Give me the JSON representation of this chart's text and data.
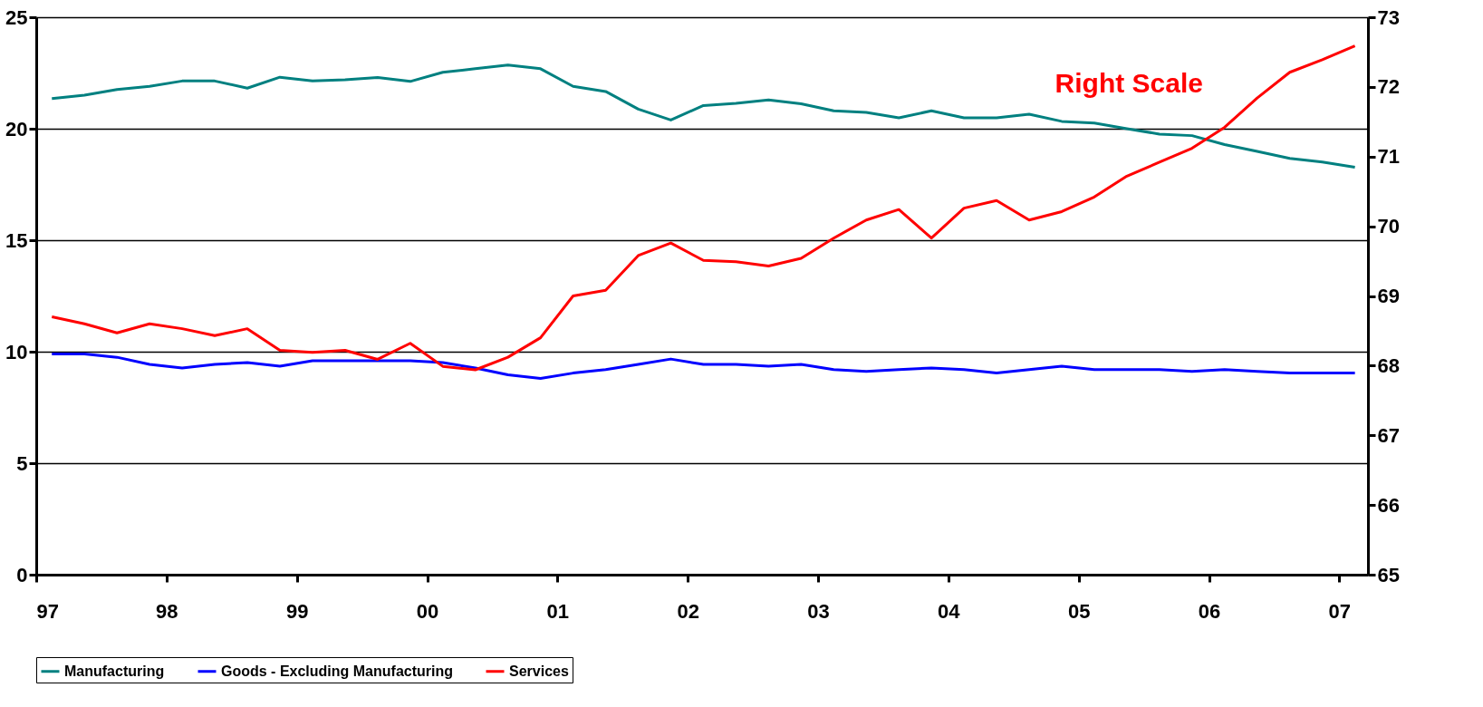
{
  "chart_data": {
    "type": "line",
    "x": [
      1997.12,
      1997.37,
      1997.62,
      1997.87,
      1998.12,
      1998.37,
      1998.62,
      1998.87,
      1999.12,
      1999.37,
      1999.62,
      1999.87,
      2000.12,
      2000.37,
      2000.62,
      2000.87,
      2001.12,
      2001.37,
      2001.62,
      2001.87,
      2002.12,
      2002.37,
      2002.62,
      2002.87,
      2003.12,
      2003.37,
      2003.62,
      2003.87,
      2004.12,
      2004.37,
      2004.62,
      2004.87,
      2005.12,
      2005.37,
      2005.62,
      2005.87,
      2006.12,
      2006.37,
      2006.62,
      2006.87,
      2007.12
    ],
    "series": [
      {
        "name": "Manufacturing",
        "color": "#008080",
        "values": [
          21.35,
          21.5,
          21.76,
          21.9,
          22.14,
          22.14,
          21.82,
          22.31,
          22.14,
          22.2,
          22.3,
          22.12,
          22.53,
          22.69,
          22.86,
          22.69,
          21.9,
          21.67,
          20.88,
          20.39,
          21.04,
          21.14,
          21.29,
          21.12,
          20.8,
          20.73,
          20.49,
          20.8,
          20.49,
          20.49,
          20.65,
          20.33,
          20.25,
          20.0,
          19.76,
          19.69,
          19.29,
          18.98,
          18.67,
          18.51,
          18.27
        ]
      },
      {
        "name": "Goods - Excluding Manufacturing",
        "color": "#0000ff",
        "values": [
          9.9,
          9.9,
          9.75,
          9.43,
          9.27,
          9.43,
          9.51,
          9.35,
          9.59,
          9.59,
          9.59,
          9.59,
          9.51,
          9.27,
          8.96,
          8.8,
          9.04,
          9.2,
          9.43,
          9.67,
          9.43,
          9.43,
          9.35,
          9.43,
          9.2,
          9.12,
          9.2,
          9.27,
          9.2,
          9.04,
          9.2,
          9.35,
          9.2,
          9.2,
          9.2,
          9.12,
          9.2,
          9.12,
          9.04,
          9.04,
          9.04
        ]
      },
      {
        "name": "Services",
        "color": "#ff0000",
        "axis": "y2",
        "values": [
          68.7,
          68.6,
          68.47,
          68.6,
          68.53,
          68.43,
          68.53,
          68.22,
          68.19,
          68.22,
          68.09,
          68.32,
          67.99,
          67.94,
          68.12,
          68.4,
          69.0,
          69.08,
          69.58,
          69.76,
          69.51,
          69.49,
          69.43,
          69.54,
          69.83,
          70.09,
          70.24,
          69.83,
          70.26,
          70.37,
          70.09,
          70.21,
          70.42,
          70.72,
          70.92,
          71.12,
          71.42,
          71.84,
          72.21,
          72.39,
          72.59
        ]
      }
    ],
    "xlim": [
      1997,
      2007.22
    ],
    "xticks": [
      {
        "value": 1997,
        "label": "97"
      },
      {
        "value": 1998,
        "label": "98"
      },
      {
        "value": 1999,
        "label": "99"
      },
      {
        "value": 2000,
        "label": "00"
      },
      {
        "value": 2001,
        "label": "01"
      },
      {
        "value": 2002,
        "label": "02"
      },
      {
        "value": 2003,
        "label": "03"
      },
      {
        "value": 2004,
        "label": "04"
      },
      {
        "value": 2005,
        "label": "05"
      },
      {
        "value": 2006,
        "label": "06"
      },
      {
        "value": 2007,
        "label": "07"
      }
    ],
    "ylim": [
      0,
      25
    ],
    "yticks": [
      0,
      5,
      10,
      15,
      20,
      25
    ],
    "y2lim": [
      65,
      73
    ],
    "y2ticks": [
      65,
      66,
      67,
      68,
      69,
      70,
      71,
      72,
      73
    ],
    "annotations": [
      "Right Scale"
    ],
    "grid": "y",
    "legend": "bottom",
    "marker": "none",
    "line_style": "solid"
  }
}
